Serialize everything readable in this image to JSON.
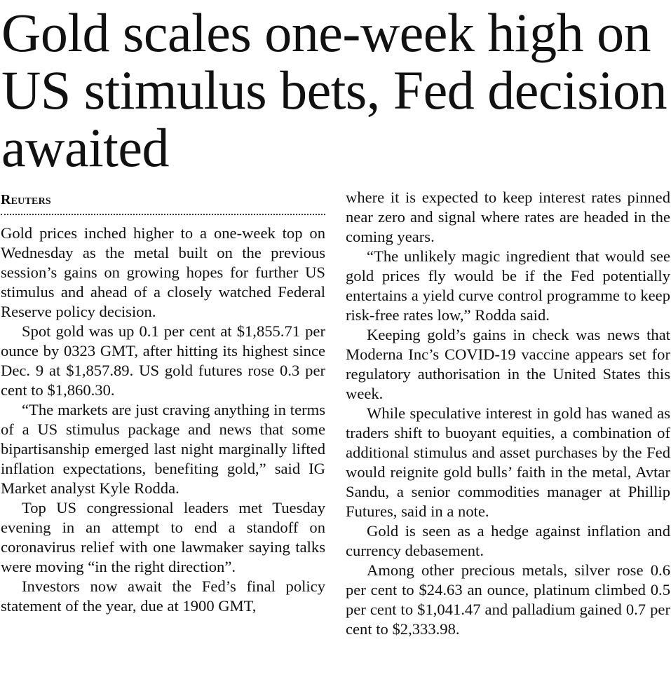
{
  "headline": "Gold scales one-week high on US stimulus bets, Fed decision awaited",
  "byline": "Reuters",
  "left_column": [
    "Gold prices inched higher to a one-week top on Wednesday as the metal built on the previous session’s gains on growing hopes for further US stimulus and ahead of a closely watched Federal Reserve policy decision.",
    "Spot gold was up 0.1 per cent at $1,855.71 per ounce by 0323 GMT, after hitting its highest since Dec. 9 at $1,857.89. US gold futures rose 0.3 per cent to $1,860.30.",
    "“The markets are just craving anything in terms of a US stimulus package and news that some bipartisanship emerged last night marginally lifted inflation expectations, benefiting gold,” said IG Market analyst Kyle Rodda.",
    "Top US congressional leaders met Tuesday evening in an attempt to end a standoff on coronavirus relief with one lawmaker saying talks were moving “in the right direction”.",
    "Investors now await the Fed’s final policy statement of the year, due at 1900 GMT,"
  ],
  "right_column": [
    "where it is expected to keep interest rates pinned near zero and signal where rates are headed in the coming years.",
    "“The unlikely magic ingredient that would see gold prices fly would be if the Fed potentially entertains a yield curve control programme to keep risk-free rates low,” Rodda said.",
    "Keeping gold’s gains in check was news that Moderna Inc’s COVID-19 vaccine appears set for regulatory authorisation in the United States this week.",
    "While speculative interest in gold has waned as traders shift to buoyant equities, a combination of additional stimulus and asset purchases by the Fed would reignite gold bulls’ faith in the metal, Avtar Sandu, a senior commodities manager at Phillip Futures, said in a note.",
    "Gold is seen as a hedge against inflation and currency debasement.",
    "Among other precious metals, silver rose 0.6 per cent to $24.63 an ounce, platinum climbed 0.5 per cent to $1,041.47 and palladium gained 0.7 per cent to $2,333.98."
  ]
}
